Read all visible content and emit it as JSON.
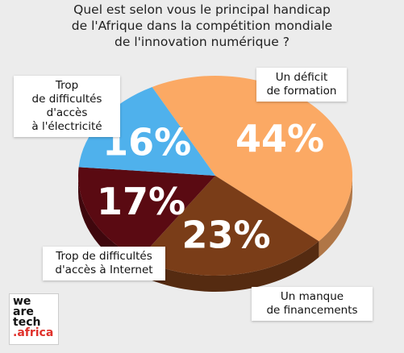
{
  "title_lines": [
    "Quel est selon vous le principal handicap",
    "de l'Afrique dans la compétition mondiale",
    "de l'innovation numérique ?"
  ],
  "logo": {
    "line1": "we",
    "line2": "are",
    "line3": "tech",
    "line4": ".africa"
  },
  "colors": {
    "formation": "#fba964",
    "financement": "#7a3d18",
    "internet": "#5a0a12",
    "electricite": "#4fb1ec"
  },
  "chart_data": {
    "type": "pie",
    "title": "Quel est selon vous le principal handicap de l'Afrique dans la compétition mondiale de l'innovation numérique ?",
    "slices": [
      {
        "key": "formation",
        "label": "Un déficit de formation",
        "value": 44,
        "display": "44%"
      },
      {
        "key": "financement",
        "label": "Un manque de financements",
        "value": 23,
        "display": "23%"
      },
      {
        "key": "internet",
        "label": "Trop de difficultés d'accès à Internet",
        "value": 17,
        "display": "17%"
      },
      {
        "key": "electricite",
        "label": "Trop de difficultés d'accès à l'électricité",
        "value": 16,
        "display": "16%"
      }
    ]
  },
  "labels": {
    "formation": [
      "Un déficit",
      "de formation"
    ],
    "financement": [
      "Un manque",
      "de financements"
    ],
    "internet": [
      "Trop de difficultés",
      "d'accès à Internet"
    ],
    "electricite": [
      "Trop",
      "de difficultés",
      "d'accès",
      "à l'électricité"
    ]
  }
}
